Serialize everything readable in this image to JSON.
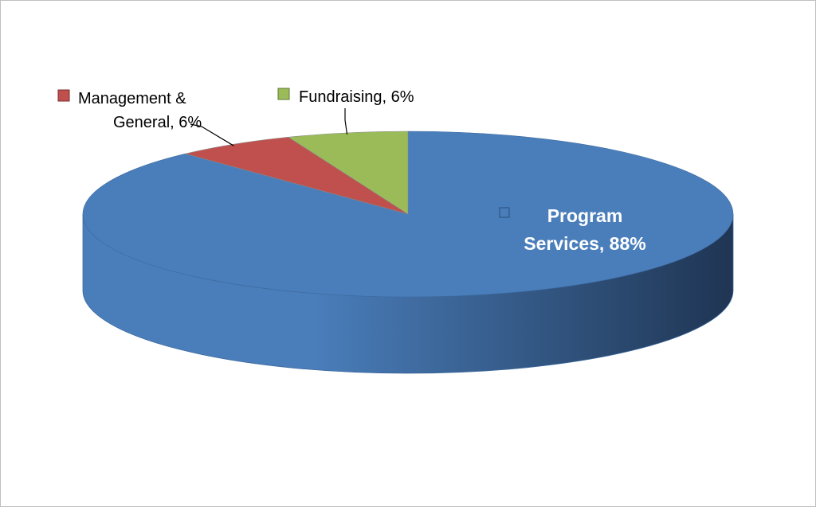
{
  "chart_data": {
    "type": "pie",
    "style": "3d",
    "title": "",
    "slices": [
      {
        "name": "Program Services",
        "value": 88,
        "label_lines": [
          "Program",
          "Services, 88%"
        ],
        "color": "#4a7ebb"
      },
      {
        "name": "Management & General",
        "value": 6,
        "label_lines": [
          "Management &",
          "General, 6%"
        ],
        "color": "#c0504d"
      },
      {
        "name": "Fundraising",
        "value": 6,
        "label_lines": [
          "Fundraising, 6%"
        ],
        "color": "#9bbb59"
      }
    ],
    "legend": "none",
    "data_labels": "outside-with-leaders"
  },
  "colors": {
    "side_dark": "#1f3553",
    "side_light": "#4a7ebb",
    "outline": "#3d6a9e",
    "leader": "#000000"
  }
}
